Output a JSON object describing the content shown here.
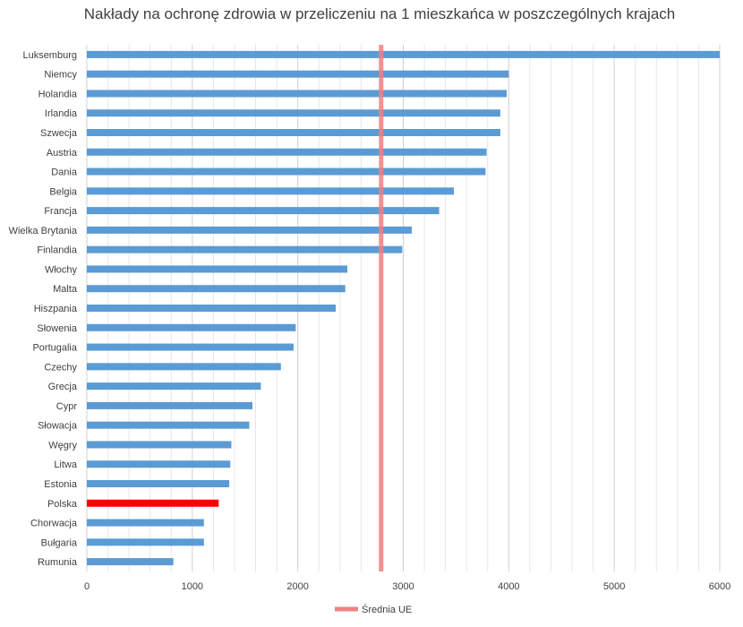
{
  "chart_data": {
    "type": "bar",
    "orientation": "horizontal",
    "title": "Nakłady na ochronę zdrowia w przeliczeniu na 1 mieszkańca w poszczególnych krajach",
    "xlabel": "",
    "ylabel": "",
    "xlim": [
      0,
      6000
    ],
    "x_ticks": [
      "0",
      "1000",
      "2000",
      "3000",
      "4000",
      "5000",
      "6000"
    ],
    "grid": "vertical minor lines every 200",
    "categories": [
      "Luksemburg",
      "Niemcy",
      "Holandia",
      "Irlandia",
      "Szwecja",
      "Austria",
      "Dania",
      "Belgia",
      "Francja",
      "Wielka Brytania",
      "Finlandia",
      "Włochy",
      "Malta",
      "Hiszpania",
      "Słowenia",
      "Portugalia",
      "Czechy",
      "Grecja",
      "Cypr",
      "Słowacja",
      "Węgry",
      "Litwa",
      "Estonia",
      "Polska",
      "Chorwacja",
      "Bułgaria",
      "Rumunia"
    ],
    "values": [
      6000,
      4000,
      3980,
      3920,
      3920,
      3790,
      3780,
      3480,
      3340,
      3080,
      2990,
      2470,
      2450,
      2360,
      1980,
      1960,
      1840,
      1650,
      1570,
      1540,
      1370,
      1360,
      1350,
      1250,
      1110,
      1110,
      820
    ],
    "bar_color": "#5b9bd5",
    "highlight": {
      "category": "Polska",
      "color": "#ff0000"
    },
    "reference_line": {
      "name": "Średnia UE",
      "value": 2790,
      "color": "#f08080"
    },
    "legend": {
      "position": "bottom-center",
      "entries": [
        "Średnia UE"
      ]
    }
  }
}
